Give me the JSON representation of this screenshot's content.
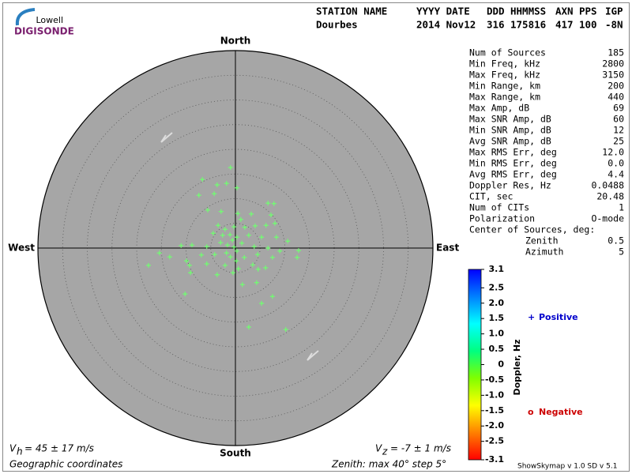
{
  "header": {
    "logo_small": "Lowell",
    "logo_big": "DIGISONDE",
    "columns": [
      "STATION NAME",
      "YYYY DATE",
      "DDD",
      "HHMMSS",
      "AXN",
      "PPS",
      "IGP"
    ],
    "values": [
      "Dourbes",
      "2014 Nov12",
      "316",
      "175816",
      "417",
      "100",
      "-8N"
    ]
  },
  "stats": {
    "rows": [
      [
        "Num of Sources",
        "185"
      ],
      [
        "Min Freq, kHz",
        "2800"
      ],
      [
        "Max Freq, kHz",
        "3150"
      ],
      [
        "Min Range, km",
        "200"
      ],
      [
        "Max Range, km",
        "440"
      ],
      [
        "Max Amp, dB",
        "69"
      ],
      [
        "Max SNR Amp, dB",
        "60"
      ],
      [
        "Min SNR Amp, dB",
        "12"
      ],
      [
        "Avg SNR Amp, dB",
        "25"
      ],
      [
        "Max RMS Err, deg",
        "12.0"
      ],
      [
        "Min RMS Err, deg",
        "0.0"
      ],
      [
        "Avg RMS Err, deg",
        "4.4"
      ],
      [
        "Doppler Res, Hz",
        "0.0488"
      ],
      [
        "CIT, sec",
        "20.48"
      ],
      [
        "Num of CITs",
        "1"
      ],
      [
        "Polarization",
        "O-mode"
      ]
    ],
    "center_title": "Center of Sources, deg:",
    "center_rows": [
      [
        "Zenith",
        "0.5"
      ],
      [
        "Azimuth",
        "5"
      ]
    ]
  },
  "footer": {
    "vh_symbol": "V",
    "vh_sub": "h",
    "vh_text": "= 45 ± 17 m/s",
    "vz_symbol": "V",
    "vz_sub": "z",
    "vz_text": "= -7 ± 1 m/s",
    "coords": "Geographic coordinates",
    "zenith": "Zenith: max 40°  step 5°",
    "version": "ShowSkymap v 1.0  SD v 5.1"
  },
  "chart_data": {
    "type": "skymap",
    "north": "North",
    "south": "South",
    "east": "East",
    "west": "West",
    "rlim": [
      0,
      40
    ],
    "rticks": [
      5,
      10,
      15,
      20,
      25,
      30,
      35,
      40
    ],
    "point_color": "#70ff70",
    "series": [
      {
        "name": "Positive",
        "marker": "+",
        "color": "#0000cc",
        "x": [
          -1.0,
          -6.7,
          -3.7,
          -1.8,
          0.3,
          -7.4,
          -4.3,
          6.6,
          -5.6,
          -2.9,
          0.5,
          3.2,
          7.2,
          1.1,
          -3.5,
          -2.1,
          -0.3,
          1.9,
          4.0,
          6.2,
          8.0,
          -4.5,
          -2.6,
          -1.1,
          0.3,
          2.7,
          5.3,
          8.3,
          10.6,
          -11.0,
          -8.8,
          -5.8,
          -3.0,
          -1.6,
          -0.3,
          1.3,
          3.8,
          6.6,
          9.0,
          12.8,
          -15.4,
          -13.3,
          -9.9,
          -6.9,
          -4.2,
          -1.0,
          1.8,
          4.5,
          7.5,
          12.5,
          -17.6,
          -9.3,
          -5.8,
          -2.1,
          0.6,
          3.5,
          6.1,
          -9.1,
          -3.7,
          -0.5,
          4.6,
          1.4,
          4.3,
          7.5,
          -10.2,
          5.3,
          2.7,
          10.2,
          7.8,
          0.2,
          -1.8,
          -0.6,
          0.3
        ],
        "y": [
          16.3,
          13.9,
          12.8,
          13.1,
          12.2,
          10.7,
          11.0,
          9.1,
          7.7,
          7.4,
          7.0,
          6.9,
          6.7,
          5.8,
          4.6,
          3.8,
          4.3,
          4.2,
          4.5,
          4.6,
          5.0,
          3.0,
          2.6,
          2.7,
          2.2,
          2.6,
          2.2,
          2.2,
          1.4,
          0.5,
          0.6,
          0.3,
          1.1,
          0.6,
          0.2,
          1.0,
          0.3,
          0,
          -0.6,
          -0.5,
          -1.0,
          -1.8,
          -2.6,
          -1.4,
          -1.3,
          -1.8,
          -1.9,
          -1.3,
          -1.9,
          -1.9,
          -3.5,
          -3.5,
          -3.2,
          -3.5,
          -4.2,
          -3.4,
          -4.0,
          -5.0,
          -5.4,
          -5.0,
          -4.3,
          -7.4,
          -7.0,
          -9.8,
          -9.3,
          -11.2,
          -16.0,
          -16.5,
          9.0,
          -2.6,
          -1.0,
          1.6,
          -0.6
        ]
      },
      {
        "name": "Negative",
        "marker": "o",
        "color": "#cc0000",
        "x": [],
        "y": []
      }
    ],
    "colorbar": {
      "label": "Doppler, Hz",
      "lim": [
        -3.1,
        3.1
      ],
      "colors": [
        "#ff0000",
        "#ff8000",
        "#ffff00",
        "#80ff00",
        "#00ff80",
        "#00ffff",
        "#0080ff",
        "#0000ff"
      ],
      "ticks": [
        3.1,
        2.5,
        {
          "value": 2,
          "label": "2.0"
        },
        1.5,
        {
          "value": 1,
          "label": "1.0"
        },
        0.5,
        0,
        -0.5,
        {
          "value": -1,
          "label": "-1.0"
        },
        -1.5,
        {
          "value": -2,
          "label": "-2.0"
        },
        -2.5,
        -3.1
      ]
    }
  }
}
